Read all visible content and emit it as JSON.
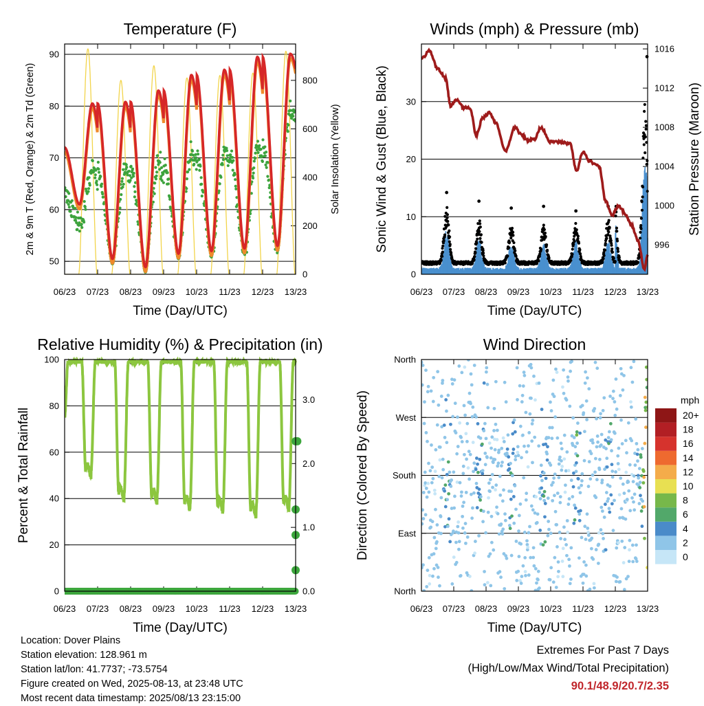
{
  "x_ticks": [
    "06/23",
    "07/23",
    "08/23",
    "09/23",
    "10/23",
    "11/23",
    "12/23",
    "13/23"
  ],
  "chart_data": [
    {
      "id": "temperature",
      "type": "line",
      "title": "Temperature (F)",
      "xlabel": "Time (Day/UTC)",
      "ylabel": "2m & 9m T (Red, Orange) & 2m Td (Green)",
      "y2label": "Solar Insolation (Yellow)",
      "ylim": [
        47.5,
        92
      ],
      "yticks": [
        50,
        60,
        70,
        80,
        90
      ],
      "y2lim": [
        0,
        950
      ],
      "y2ticks": [
        0,
        200,
        400,
        600,
        800
      ],
      "xlim": [
        6,
        13
      ],
      "grid": "horizontal",
      "colors": {
        "t2m": "#d62728",
        "t9m": "#ef8a2b",
        "td": "#3da33d",
        "solar": "#f2d44a"
      },
      "daily_max_2m_T": [
        80.5,
        80.8,
        83.0,
        86.0,
        87.0,
        89.5,
        90.1
      ],
      "daily_min_2m_T": [
        61.0,
        50.5,
        48.9,
        51.5,
        52.0,
        52.5,
        53.0
      ],
      "daily_peak_solar": [
        930,
        800,
        860,
        810,
        820,
        830,
        920
      ]
    },
    {
      "id": "winds",
      "type": "scatter",
      "title": "Winds (mph) & Pressure (mb)",
      "xlabel": "Time (Day/UTC)",
      "ylabel": "Sonic Wind & Gust (Blue, Black)",
      "y2label": "Station Pressure (Maroon)",
      "ylim": [
        0,
        40
      ],
      "yticks": [
        0,
        10,
        20,
        30
      ],
      "y2lim": [
        993.0,
        1016.5
      ],
      "y2ticks": [
        996,
        1000,
        1004,
        1008,
        1012,
        1016
      ],
      "xlim": [
        6,
        13
      ],
      "grid": "horizontal",
      "colors": {
        "wind": "#4a90cf",
        "gust": "#000000",
        "pressure": "#9e1b1b"
      },
      "pressure_series": {
        "x": [
          6.0,
          6.25,
          6.5,
          6.75,
          6.9,
          7.1,
          7.3,
          7.5,
          7.7,
          7.9,
          8.1,
          8.3,
          8.6,
          8.9,
          9.1,
          9.3,
          9.5,
          9.7,
          10.0,
          10.3,
          10.6,
          10.8,
          11.0,
          11.2,
          11.5,
          11.7,
          11.9,
          12.1,
          12.3,
          12.5,
          12.7,
          12.9,
          13.0
        ],
        "y": [
          1015.0,
          1015.8,
          1014.0,
          1013.0,
          1010.2,
          1010.8,
          1010.0,
          1010.0,
          1007.2,
          1009.0,
          1009.5,
          1008.5,
          1005.5,
          1008.0,
          1007.2,
          1006.7,
          1006.8,
          1008.0,
          1006.5,
          1006.5,
          1006.3,
          1003.5,
          1005.5,
          1004.5,
          1004.0,
          1000.5,
          999.0,
          1000.0,
          999.2,
          998.0,
          996.5,
          993.5,
          995.0
        ]
      },
      "daily_peak_gust": [
        14.2,
        12.7,
        11.5,
        11.8,
        11.0,
        11.8,
        37.8
      ],
      "daily_peak_wind": [
        9.0,
        7.0,
        6.0,
        6.0,
        6.5,
        7.0,
        20.7
      ]
    },
    {
      "id": "humidity",
      "type": "line",
      "title": "Relative Humidity (%) & Precipitation (in)",
      "xlabel": "Time (Day/UTC)",
      "ylabel": "Percent & Total Rainfall",
      "ylim": [
        0,
        100
      ],
      "yticks": [
        0,
        20,
        40,
        60,
        80,
        100
      ],
      "y2lim": [
        0,
        3.63
      ],
      "y2ticks": [
        "0.0",
        "1.0",
        "2.0",
        "3.0"
      ],
      "xlim": [
        6,
        13
      ],
      "grid": "horizontal",
      "colors": {
        "rh": "#8cc63f",
        "precip": "#3ca63c"
      },
      "daily_min_rh": [
        52,
        42,
        41,
        38,
        37,
        35,
        38
      ],
      "precip_points": {
        "x": [
          13.0,
          13.0,
          13.0,
          13.0,
          13.05
        ],
        "y": [
          0.33,
          0.88,
          1.28,
          2.35,
          2.35
        ]
      }
    },
    {
      "id": "wind_direction",
      "type": "scatter",
      "title": "Wind Direction",
      "xlabel": "Time (Day/UTC)",
      "ylabel": "Direction (Colored By Speed)",
      "ylim": [
        0,
        360
      ],
      "yticks": [
        "North",
        "East",
        "South",
        "West",
        "North"
      ],
      "xlim": [
        6,
        13
      ],
      "grid": "horizontal",
      "legend_title": "mph",
      "legend_labels": [
        "0",
        "2",
        "4",
        "6",
        "8",
        "10",
        "12",
        "14",
        "16",
        "18",
        "20+"
      ],
      "legend_colors": [
        "#c6e6f7",
        "#8fc5e8",
        "#4a8bc9",
        "#52a86a",
        "#77b84a",
        "#e8e052",
        "#f4ac4a",
        "#ee6a2f",
        "#d6332d",
        "#b21f24",
        "#8e1616"
      ]
    }
  ],
  "info": {
    "location": "Location: Dover Plains",
    "elevation": "Station elevation: 128.961 m",
    "latlon": "Station lat/lon: 41.7737; -73.5754",
    "created": "Figure created on Wed, 2025-08-13, at 23:48 UTC",
    "recent": "Most recent data timestamp: 2025/08/13 23:15:00"
  },
  "extremes": {
    "title": "Extremes For Past 7 Days",
    "subtitle": "(High/Low/Max Wind/Total Precipitation)",
    "values": "90.1/48.9/20.7/2.35"
  }
}
